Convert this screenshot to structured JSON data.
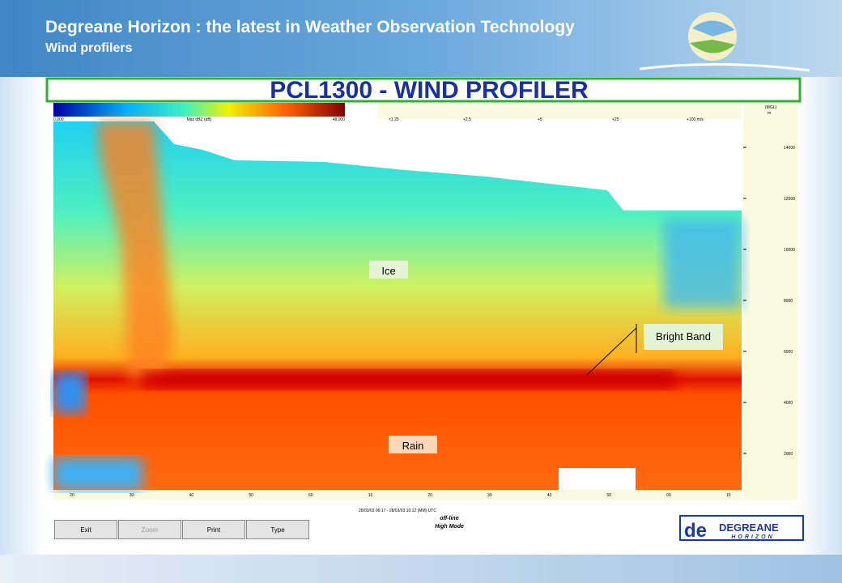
{
  "header": {
    "title": "Degreane Horizon : the latest in Weather Observation Technology",
    "subtitle": "Wind profilers"
  },
  "banner": "PCL1300 - WIND PROFILER",
  "colorbar": {
    "min": "0.000",
    "label": "Max dBZ (dB)",
    "max": "48.000",
    "speeds": [
      "<1.25",
      "+2.5",
      "+5",
      "+25",
      "+100 m/s"
    ]
  },
  "y_axis": {
    "unit": "(MGL)",
    "unit2": "m",
    "ticks": [
      "14000",
      "12000",
      "10000",
      "8000",
      "6000",
      "4000",
      "2000"
    ]
  },
  "x_axis": {
    "ticks": [
      "20",
      "30",
      "40",
      "50",
      "60",
      "10",
      "20",
      "30",
      "40",
      "50",
      "00",
      "10"
    ],
    "range": "28/03/03 06:17 - 28/03/03 10:12 (MM) UTC"
  },
  "annotations": {
    "ice": "Ice",
    "bright_band": "Bright Band",
    "rain": "Rain"
  },
  "buttons": [
    "Exit",
    "Zoom",
    "Print",
    "Type"
  ],
  "status": {
    "mode1": "off-line",
    "mode2": "High Mode"
  },
  "logo": {
    "name": "DEGREANE",
    "sub": "HORIZON"
  }
}
